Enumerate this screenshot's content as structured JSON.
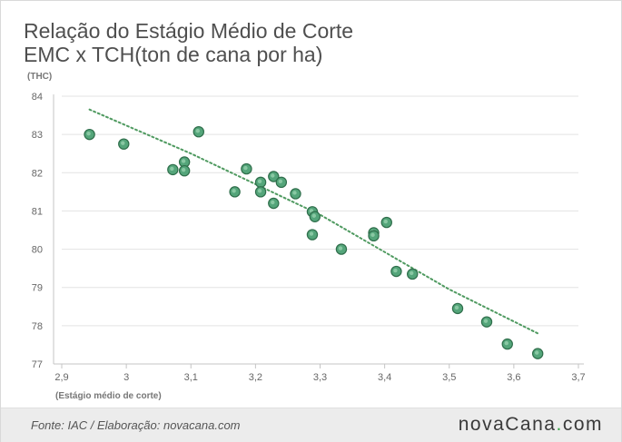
{
  "chart_data": {
    "type": "scatter",
    "title_line1": "Relação do Estágio Médio de Corte",
    "title_line2": "EMC x TCH(ton de cana por ha)",
    "xlabel": "(Estágio médio de corte)",
    "ylabel": "(THC)",
    "xlim": [
      2.9,
      3.7
    ],
    "ylim": [
      77,
      84
    ],
    "xticks": [
      "2,9",
      "3",
      "3,1",
      "3,2",
      "3,3",
      "3,4",
      "3,5",
      "3,6",
      "3,7"
    ],
    "yticks": [
      "77",
      "78",
      "79",
      "80",
      "81",
      "82",
      "83",
      "84"
    ],
    "grid": "horizontal",
    "points": [
      {
        "x": 2.943,
        "y": 83.0
      },
      {
        "x": 2.996,
        "y": 82.75
      },
      {
        "x": 3.072,
        "y": 82.08
      },
      {
        "x": 3.09,
        "y": 82.28
      },
      {
        "x": 3.09,
        "y": 82.05
      },
      {
        "x": 3.112,
        "y": 83.07
      },
      {
        "x": 3.168,
        "y": 81.5
      },
      {
        "x": 3.186,
        "y": 82.1
      },
      {
        "x": 3.208,
        "y": 81.75
      },
      {
        "x": 3.208,
        "y": 81.5
      },
      {
        "x": 3.228,
        "y": 81.9
      },
      {
        "x": 3.228,
        "y": 81.2
      },
      {
        "x": 3.24,
        "y": 81.75
      },
      {
        "x": 3.262,
        "y": 81.45
      },
      {
        "x": 3.288,
        "y": 80.98
      },
      {
        "x": 3.292,
        "y": 80.85
      },
      {
        "x": 3.288,
        "y": 80.38
      },
      {
        "x": 3.333,
        "y": 80.0
      },
      {
        "x": 3.383,
        "y": 80.43
      },
      {
        "x": 3.383,
        "y": 80.35
      },
      {
        "x": 3.403,
        "y": 80.7
      },
      {
        "x": 3.418,
        "y": 79.42
      },
      {
        "x": 3.443,
        "y": 79.35
      },
      {
        "x": 3.513,
        "y": 78.45
      },
      {
        "x": 3.558,
        "y": 78.1
      },
      {
        "x": 3.59,
        "y": 77.52
      },
      {
        "x": 3.637,
        "y": 77.27
      }
    ],
    "trendline": [
      {
        "x": 2.943,
        "y": 83.65
      },
      {
        "x": 3.1,
        "y": 82.5
      },
      {
        "x": 3.3,
        "y": 80.9
      },
      {
        "x": 3.5,
        "y": 78.95
      },
      {
        "x": 3.637,
        "y": 77.8
      }
    ],
    "colors": {
      "point_fill": "#54a57a",
      "point_stroke": "#2f6e4b",
      "point_highlight": "#9fd7b5",
      "trendline": "#4f9a60",
      "grid": "#e3e3e3",
      "axis": "#c4c4c4",
      "tick_text": "#666666"
    }
  },
  "footer": {
    "source": "Fonte: IAC / Elaboração: novacana.com",
    "brand_main": "novaCana",
    "brand_dot": ".",
    "brand_tld": "com"
  }
}
